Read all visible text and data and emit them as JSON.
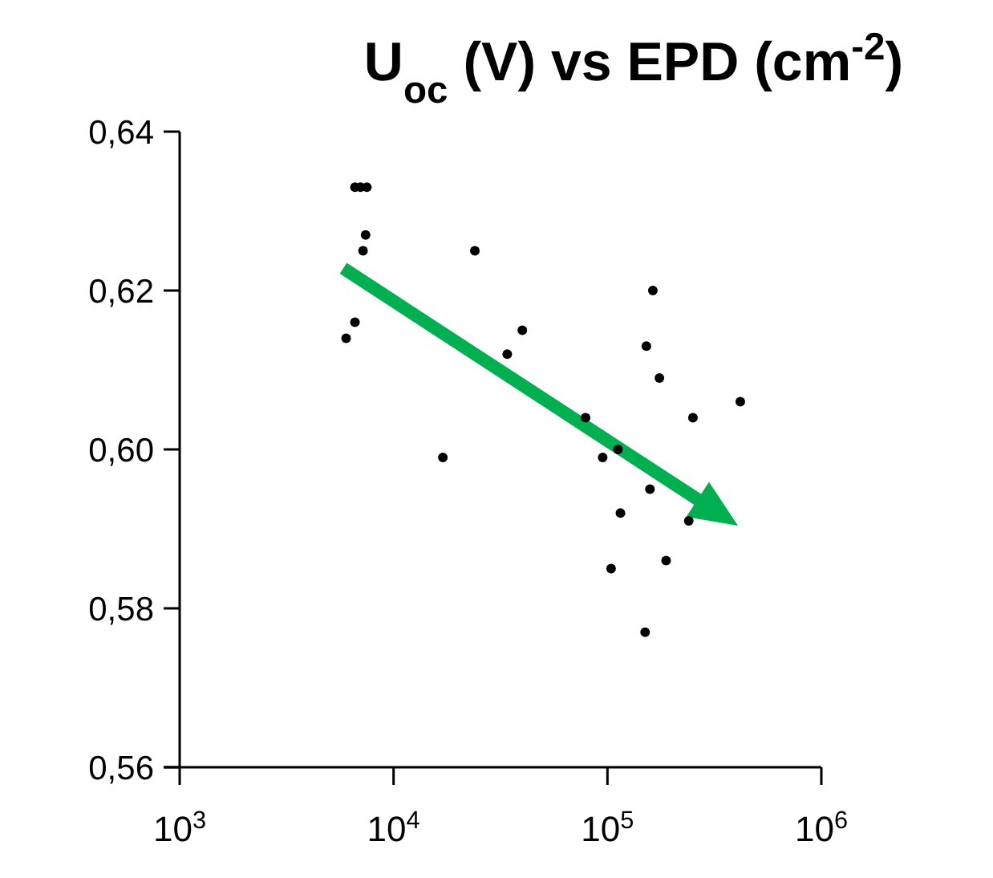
{
  "chart_data": {
    "type": "scatter",
    "title": "U$_{oc}$ (V) vs EPD (cm$^{-2}$)",
    "log": "x",
    "xlim": [
      1000,
      1000000
    ],
    "xticks": [
      {
        "value": 1000,
        "label": "10$^{3}$"
      },
      {
        "value": 10000,
        "label": "10$^{4}$"
      },
      {
        "value": 100000,
        "label": "10$^{5}$"
      },
      {
        "value": 1000000,
        "label": "10$^{6}$"
      }
    ],
    "ylim": [
      0.56,
      0.64
    ],
    "yticks": [
      {
        "value": 0.56,
        "label": "0,56"
      },
      {
        "value": 0.58,
        "label": "0,58"
      },
      {
        "value": 0.6,
        "label": "0,60"
      },
      {
        "value": 0.62,
        "label": "0,62"
      },
      {
        "value": 0.64,
        "label": "0,64"
      }
    ],
    "grid": false,
    "marker": "circle",
    "series": [
      {
        "color": "#000000",
        "x": [
          6600,
          7000,
          7500,
          7400,
          7200,
          6600,
          6000,
          24000,
          40000,
          34000,
          17000,
          79000,
          163000,
          152000,
          175000,
          418000,
          251000,
          95000,
          112000,
          158000,
          115000,
          240000,
          188000,
          104000,
          150000
        ],
        "values": [
          0.633,
          0.633,
          0.633,
          0.627,
          0.625,
          0.616,
          0.614,
          0.625,
          0.615,
          0.612,
          0.599,
          0.604,
          0.62,
          0.613,
          0.609,
          0.606,
          0.604,
          0.599,
          0.6,
          0.595,
          0.592,
          0.591,
          0.586,
          0.585,
          0.577
        ]
      }
    ]
  }
}
